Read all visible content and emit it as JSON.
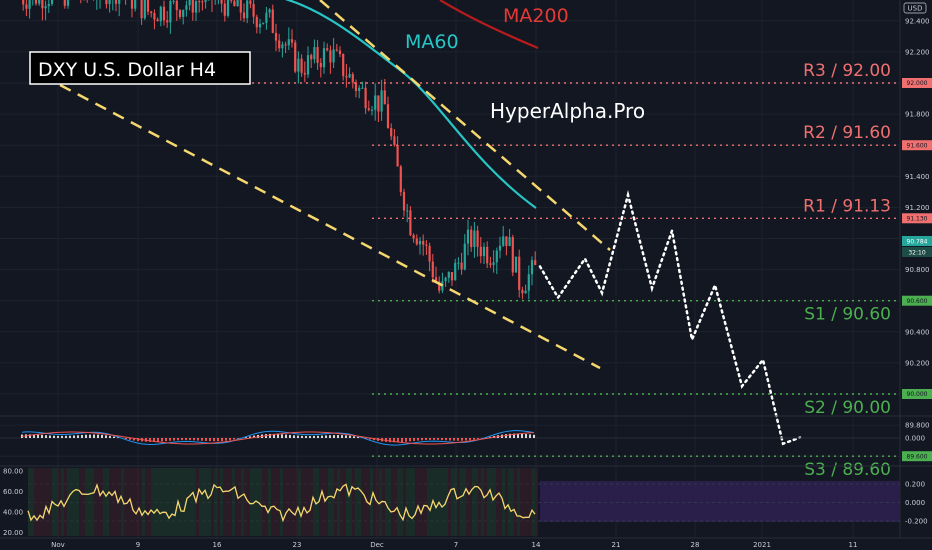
{
  "chart_data": {
    "type": "candlestick",
    "title": "DXY U.S. Dollar H4",
    "watermark": "HyperAlpha.Pro",
    "currency": "USD",
    "ylim": [
      89.4,
      92.8
    ],
    "y_ticks": [
      "92.400",
      "92.200",
      "92.000",
      "91.800",
      "91.600",
      "91.400",
      "91.200",
      "91.000",
      "90.800",
      "90.600",
      "90.400",
      "90.200",
      "90.000",
      "89.800",
      "89.600"
    ],
    "x_ticks": [
      "Nov",
      "9",
      "16",
      "23",
      "Dec",
      "7",
      "14",
      "21",
      "28",
      "2021",
      "11"
    ],
    "last_price": "90.784",
    "countdown": "32:10",
    "moving_averages": [
      {
        "name": "MA60",
        "color": "#26c6c6"
      },
      {
        "name": "MA200",
        "color": "#b71c1c"
      }
    ],
    "levels": [
      {
        "label": "R3 / 92.00",
        "value": 92.0,
        "tag": "92.000",
        "kind": "resistance"
      },
      {
        "label": "R2 / 91.60",
        "value": 91.6,
        "tag": "91.600",
        "kind": "resistance"
      },
      {
        "label": "R1 / 91.13",
        "value": 91.13,
        "tag": "91.130",
        "kind": "resistance"
      },
      {
        "label": "S1 / 90.60",
        "value": 90.6,
        "tag": "90.600",
        "kind": "support"
      },
      {
        "label": "S2 / 90.00",
        "value": 90.0,
        "tag": "90.000",
        "kind": "support"
      },
      {
        "label": "S3 / 89.60",
        "value": 89.6,
        "tag": "89.600",
        "kind": "support"
      }
    ],
    "forecast_path": [
      90.82,
      90.62,
      90.87,
      90.65,
      91.28,
      90.68,
      91.05,
      90.35,
      90.7,
      90.05,
      90.22,
      89.68,
      89.72
    ],
    "macd": {
      "zero_label": "0.000"
    },
    "rsi": {
      "ticks": [
        "80.00",
        "60.00",
        "40.00",
        "20.00"
      ]
    },
    "stoch": {
      "ticks": [
        "0.200",
        "0.000",
        "-0.200"
      ]
    },
    "colors": {
      "up": "#26a69a",
      "down": "#ef5350",
      "resistance": "#f07070",
      "support": "#4caf50",
      "channel": "#f5d76e",
      "forecast": "#ffffff",
      "background": "#131722"
    }
  }
}
